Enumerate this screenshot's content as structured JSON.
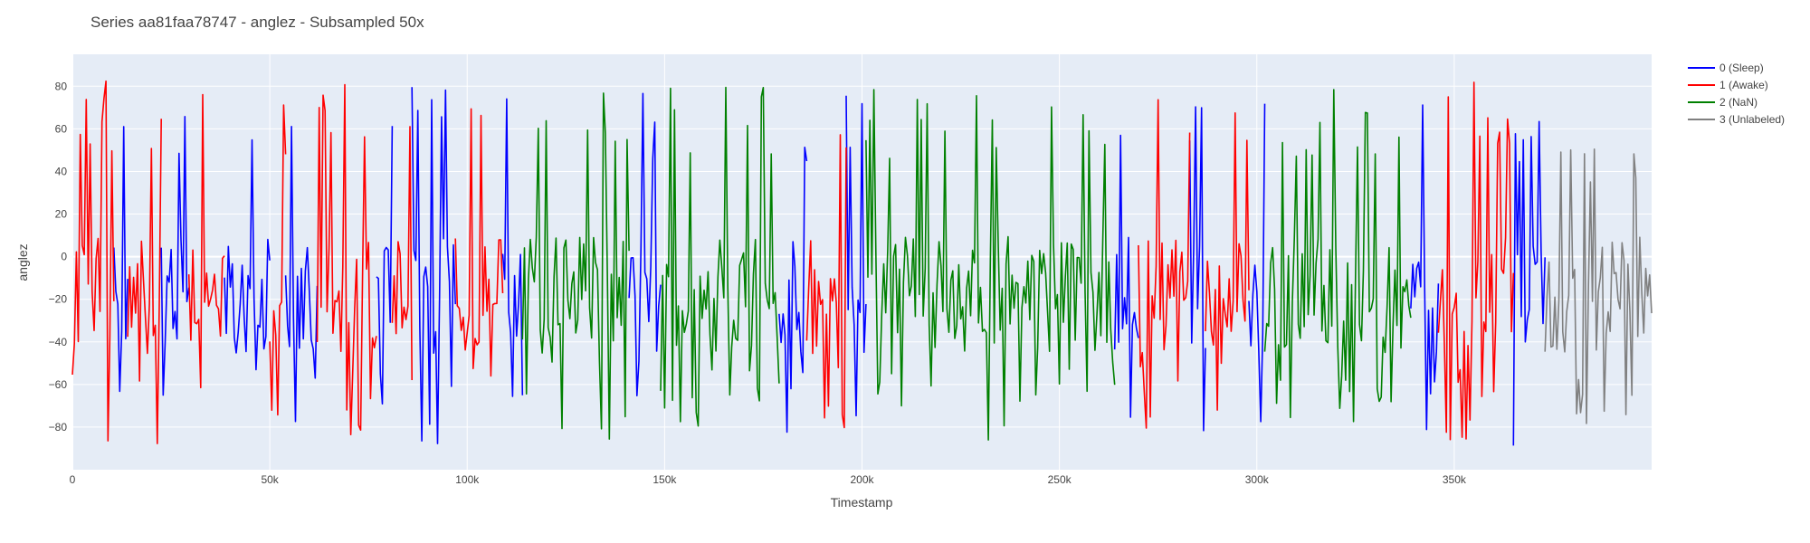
{
  "chart_data": {
    "type": "line",
    "title": "Series aa81faa78747 - anglez - Subsampled 50x",
    "xlabel": "Timestamp",
    "ylabel": "anglez",
    "xlim": [
      0,
      400000
    ],
    "ylim": [
      -100,
      95
    ],
    "x_ticks": [
      0,
      50000,
      100000,
      150000,
      200000,
      250000,
      300000,
      350000
    ],
    "x_tick_labels": [
      "0",
      "50k",
      "100k",
      "150k",
      "200k",
      "250k",
      "300k",
      "350k"
    ],
    "y_ticks": [
      -80,
      -60,
      -40,
      -20,
      0,
      20,
      40,
      60,
      80
    ],
    "y_tick_labels": [
      "−80",
      "−60",
      "−40",
      "−20",
      "0",
      "20",
      "40",
      "60",
      "80"
    ],
    "grid": true,
    "background": "#e5ecf6",
    "legend_position": "top-right",
    "series": [
      {
        "name": "0 (Sleep)",
        "color": "#0000ff",
        "segments": [
          [
            10500,
            14000
          ],
          [
            22500,
            29500
          ],
          [
            38500,
            50000
          ],
          [
            54000,
            62000
          ],
          [
            77000,
            81000
          ],
          [
            86000,
            97000
          ],
          [
            109000,
            114000
          ],
          [
            141000,
            149000
          ],
          [
            179000,
            186000
          ],
          [
            196000,
            201000
          ],
          [
            264000,
            270000
          ],
          [
            283000,
            287000
          ],
          [
            298000,
            302000
          ],
          [
            339000,
            346000
          ],
          [
            365000,
            373000
          ]
        ],
        "stats": {
          "min": -89,
          "max": 80,
          "mean": -18
        }
      },
      {
        "name": "1 (Awake)",
        "color": "#ff0000",
        "segments": [
          [
            0,
            10500
          ],
          [
            14000,
            22500
          ],
          [
            29500,
            38500
          ],
          [
            50000,
            54000
          ],
          [
            62000,
            77000
          ],
          [
            81000,
            86000
          ],
          [
            97000,
            109000
          ],
          [
            186000,
            196000
          ],
          [
            270000,
            283000
          ],
          [
            287000,
            298000
          ],
          [
            346000,
            365000
          ]
        ],
        "stats": {
          "min": -89,
          "max": 83,
          "mean": -18
        }
      },
      {
        "name": "2 (NaN)",
        "color": "#008000",
        "segments": [
          [
            114000,
            141000
          ],
          [
            149000,
            179000
          ],
          [
            201000,
            264000
          ],
          [
            302000,
            339000
          ]
        ],
        "stats": {
          "min": -89,
          "max": 81,
          "mean": -18
        }
      },
      {
        "name": "3 (Unlabeled)",
        "color": "#808080",
        "segments": [
          [
            373000,
            400000
          ]
        ],
        "stats": {
          "min": -89,
          "max": 58,
          "mean": -18
        }
      }
    ]
  }
}
